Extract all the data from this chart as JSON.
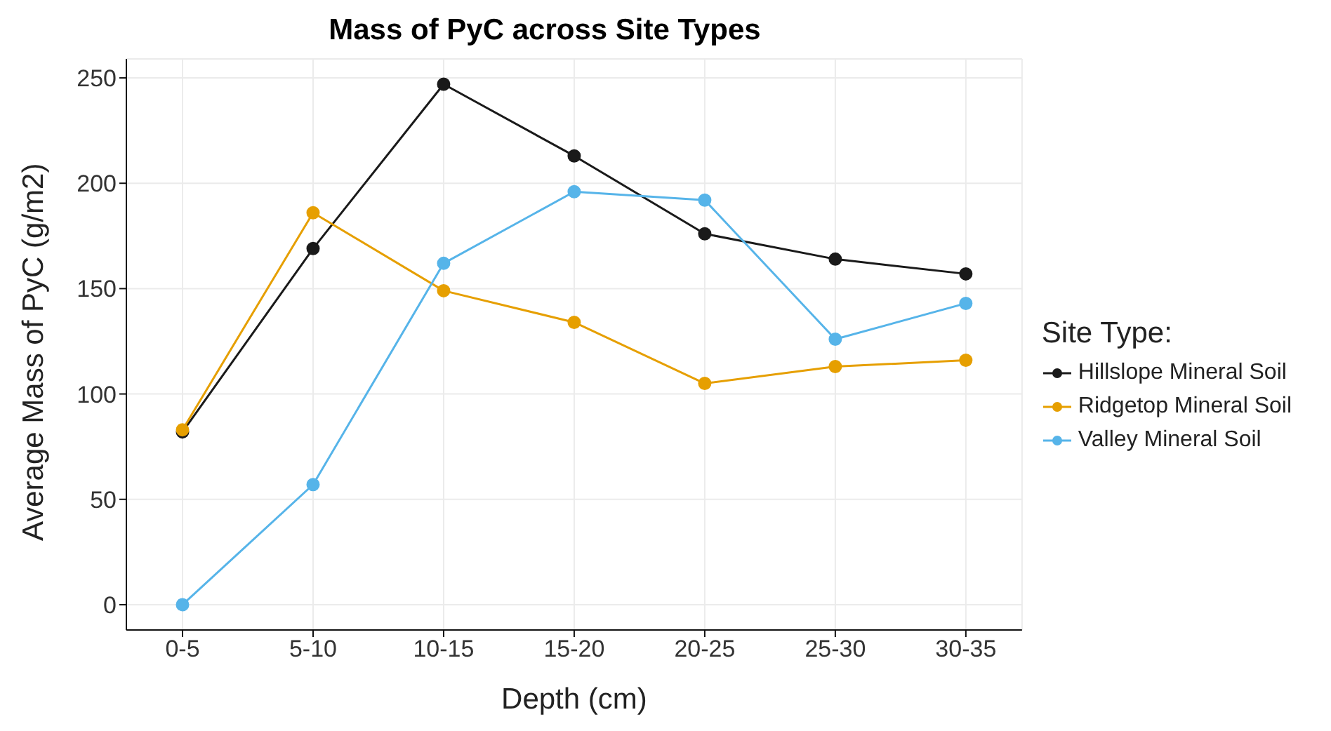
{
  "chart_data": {
    "type": "line",
    "title": "Mass of PyC across Site Types",
    "xlabel": "Depth (cm)",
    "ylabel": "Average Mass of PyC (g/m2)",
    "legend_title": "Site Type:",
    "categories": [
      "0-5",
      "5-10",
      "10-15",
      "15-20",
      "20-25",
      "25-30",
      "30-35"
    ],
    "series": [
      {
        "name": "Hillslope Mineral Soil",
        "color": "#1a1a1a",
        "values": [
          82,
          169,
          247,
          213,
          176,
          164,
          157
        ]
      },
      {
        "name": "Ridgetop Mineral Soil",
        "color": "#e69f00",
        "values": [
          83,
          186,
          149,
          134,
          105,
          113,
          116
        ]
      },
      {
        "name": "Valley Mineral Soil",
        "color": "#56b4e9",
        "values": [
          0,
          57,
          162,
          196,
          192,
          126,
          143
        ]
      }
    ],
    "ylim": [
      -12,
      259
    ],
    "yticks": [
      0,
      50,
      100,
      150,
      200,
      250
    ],
    "grid": true,
    "legend": "right",
    "marker": "circle",
    "line_style": "solid"
  }
}
